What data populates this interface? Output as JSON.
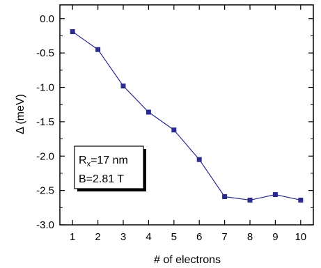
{
  "chart_data": {
    "type": "line",
    "xlabel": "# of electrons",
    "ylabel": "Δ (meV)",
    "x": [
      1,
      2,
      3,
      4,
      5,
      6,
      7,
      8,
      9,
      10
    ],
    "series": [
      {
        "values": [
          -0.19,
          -0.45,
          -0.98,
          -1.36,
          -1.62,
          -2.05,
          -2.59,
          -2.64,
          -2.56,
          -2.64
        ]
      }
    ],
    "xlim": [
      0.5,
      10.5
    ],
    "ylim": [
      -3.0,
      0.2
    ],
    "xticks": [
      "1",
      "2",
      "3",
      "4",
      "5",
      "6",
      "7",
      "8",
      "9",
      "10"
    ],
    "yticks": [
      "0.0",
      "-0.5",
      "-1.0",
      "-1.5",
      "-2.0",
      "-2.5",
      "-3.0"
    ],
    "grid": false,
    "series_color": "#2b2b8c",
    "annotation": {
      "r_prefix": "R",
      "r_sub": "x",
      "r_value": "=17 nm",
      "b_line": "B=2.81 T"
    }
  }
}
